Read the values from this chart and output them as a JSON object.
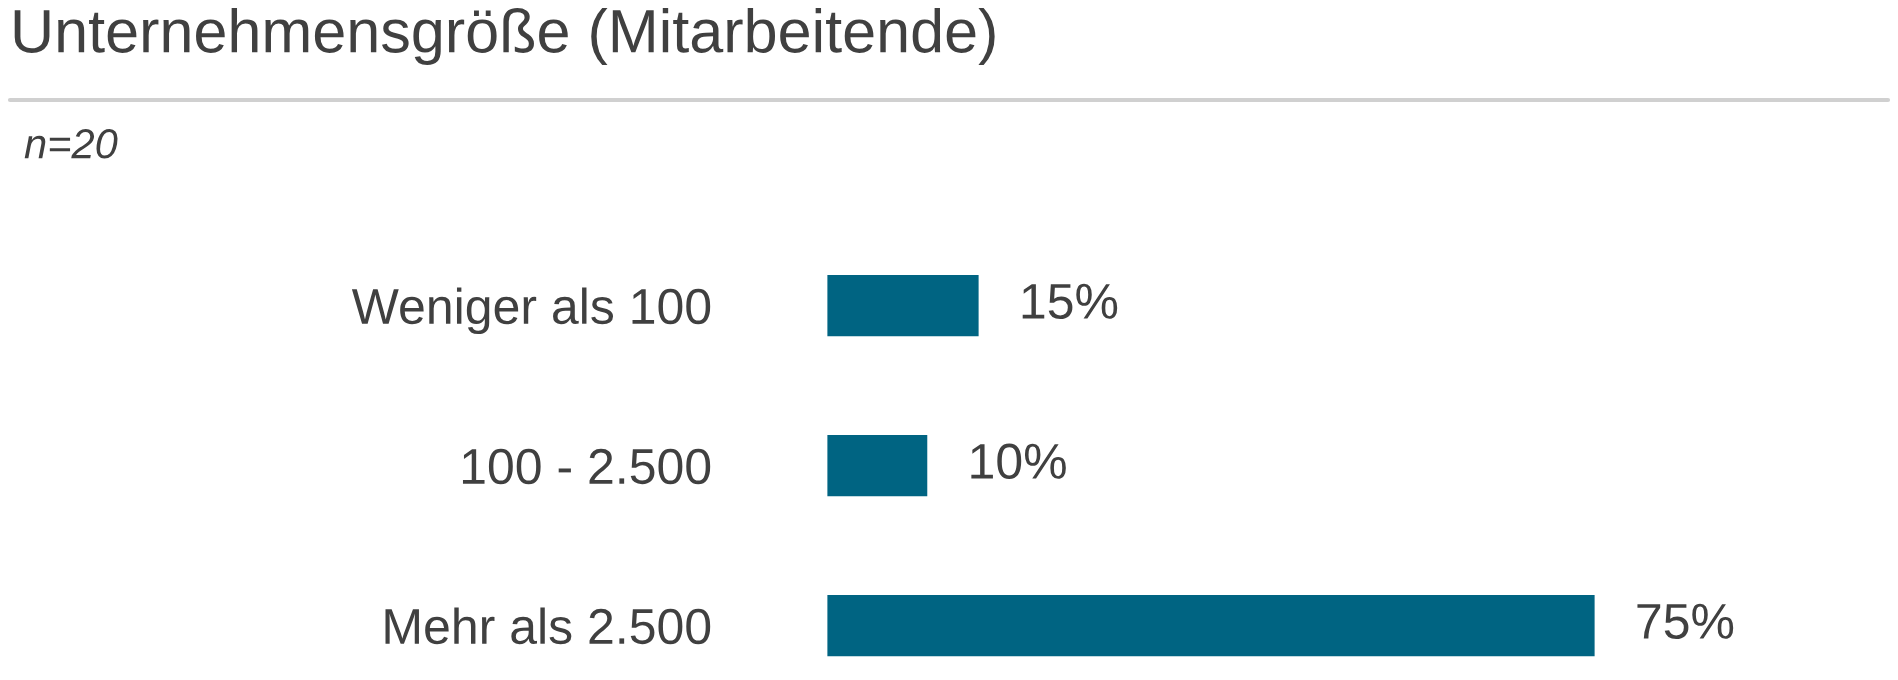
{
  "chart_data": {
    "type": "bar",
    "orientation": "horizontal",
    "title": "Unternehmensgröße (Mitarbeitende)",
    "subtitle": "n=20",
    "categories": [
      "Weniger als 100",
      "100 - 2.500",
      "Mehr als 2.500"
    ],
    "values": [
      15,
      10,
      75
    ],
    "value_labels": [
      "15%",
      "10%",
      "75%"
    ],
    "color": "#006482"
  }
}
